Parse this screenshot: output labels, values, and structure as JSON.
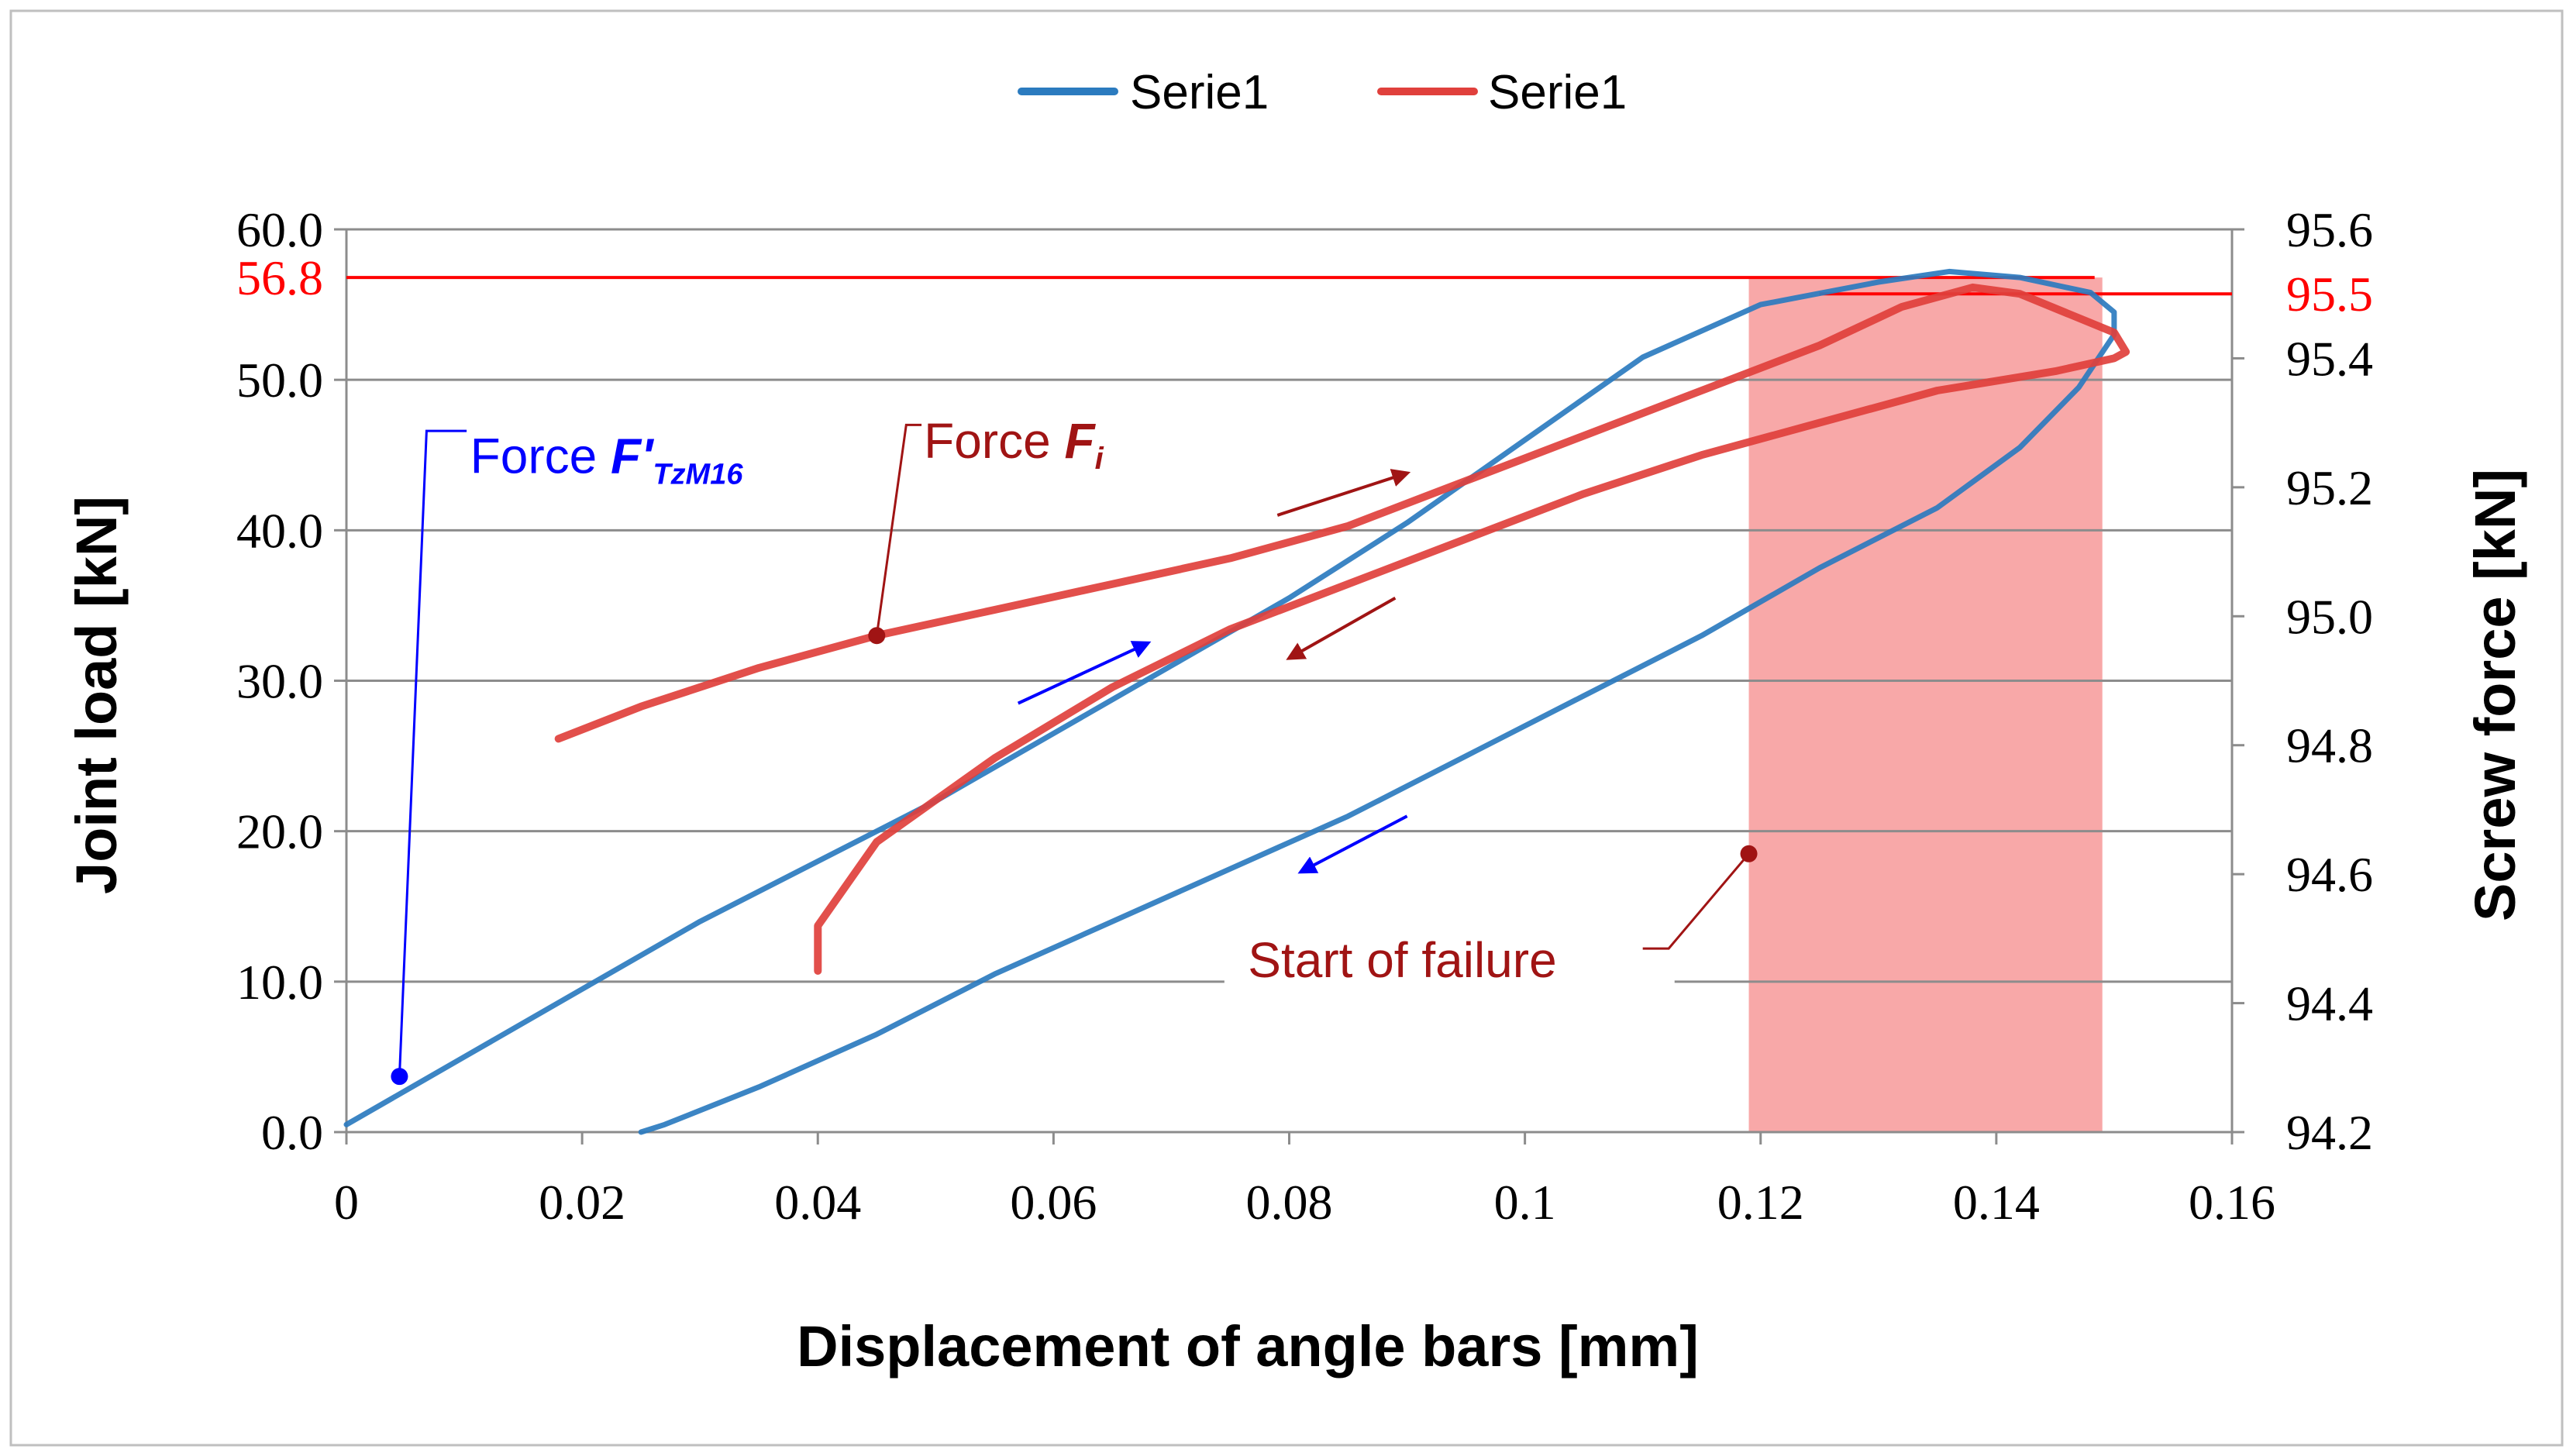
{
  "chart_data": {
    "type": "line",
    "xlabel": "Displacement of angle bars [mm]",
    "ylabel": "Joint load [kN]",
    "y2label": "Screw force [kN]",
    "xlim": [
      0,
      0.16
    ],
    "ylim": [
      0,
      60
    ],
    "y2lim": [
      94.2,
      95.6
    ],
    "x_ticks": [
      "0",
      "0.02",
      "0.04",
      "0.06",
      "0.08",
      "0.1",
      "0.12",
      "0.14",
      "0.16"
    ],
    "y_ticks": [
      "0.0",
      "10.0",
      "20.0",
      "30.0",
      "40.0",
      "50.0",
      "60.0"
    ],
    "y2_ticks": [
      "94.2",
      "94.4",
      "94.6",
      "94.8",
      "95.0",
      "95.2",
      "95.4",
      "95.6"
    ],
    "grid": "horizontal",
    "legend_position": "top",
    "legend": [
      "Serie1",
      "Serie1"
    ],
    "series": [
      {
        "name": "Serie1",
        "axis": "left",
        "color": "#2b7bbf",
        "x": [
          0,
          0.01,
          0.02,
          0.03,
          0.04,
          0.05,
          0.06,
          0.07,
          0.08,
          0.09,
          0.1,
          0.11,
          0.12,
          0.13,
          0.136,
          0.142,
          0.148,
          0.15,
          0.15,
          0.147,
          0.142,
          0.135,
          0.125,
          0.115,
          0.105,
          0.095,
          0.085,
          0.075,
          0.065,
          0.055,
          0.045,
          0.035,
          0.027,
          0.025
        ],
        "y": [
          0.5,
          5.0,
          9.5,
          14.0,
          18.0,
          22.0,
          26.5,
          31.0,
          35.5,
          40.5,
          46.0,
          51.5,
          55.0,
          56.5,
          57.2,
          56.8,
          55.8,
          54.5,
          53.0,
          49.5,
          45.5,
          41.5,
          37.5,
          33.0,
          29.0,
          25.0,
          21.0,
          17.5,
          14.0,
          10.5,
          6.5,
          3.0,
          0.5,
          0.0
        ]
      },
      {
        "name": "Serie1",
        "axis": "right",
        "color": "#e0403c",
        "x": [
          0.018,
          0.025,
          0.035,
          0.045,
          0.055,
          0.065,
          0.075,
          0.085,
          0.095,
          0.105,
          0.115,
          0.125,
          0.132,
          0.138,
          0.142,
          0.146,
          0.15,
          0.151,
          0.15,
          0.145,
          0.135,
          0.125,
          0.115,
          0.105,
          0.095,
          0.085,
          0.075,
          0.065,
          0.055,
          0.045,
          0.04,
          0.04
        ],
        "y": [
          94.81,
          94.86,
          94.92,
          94.97,
          95.01,
          95.05,
          95.09,
          95.14,
          95.21,
          95.28,
          95.35,
          95.42,
          95.48,
          95.51,
          95.5,
          95.47,
          95.44,
          95.41,
          95.4,
          95.38,
          95.35,
          95.3,
          95.25,
          95.19,
          95.12,
          95.05,
          94.98,
          94.89,
          94.78,
          94.65,
          94.52,
          94.45
        ]
      }
    ],
    "reference_lines": [
      {
        "axis": "left",
        "value": 56.8,
        "label": "56.8",
        "color": "#ff0000"
      },
      {
        "axis": "right",
        "value": 95.5,
        "label": "95.5",
        "color": "#ff0000"
      }
    ],
    "shaded_region": {
      "x_start": 0.119,
      "x_end": 0.149,
      "color": "#f8a8a8"
    },
    "annotations": [
      {
        "text": "Force ",
        "symbol": "F'",
        "subscript": "TzM16",
        "color": "#0000ff",
        "point_x": 0.0045,
        "point_y": 3.7,
        "axis": "left"
      },
      {
        "text": "Force ",
        "symbol": "F",
        "subscript": "i",
        "color": "#a01414",
        "point_x": 0.045,
        "point_y": 33.0,
        "axis": "left"
      },
      {
        "text": "Start of failure",
        "color": "#a01414",
        "point_x": 0.119,
        "point_y": 18.5,
        "axis": "left"
      }
    ]
  }
}
